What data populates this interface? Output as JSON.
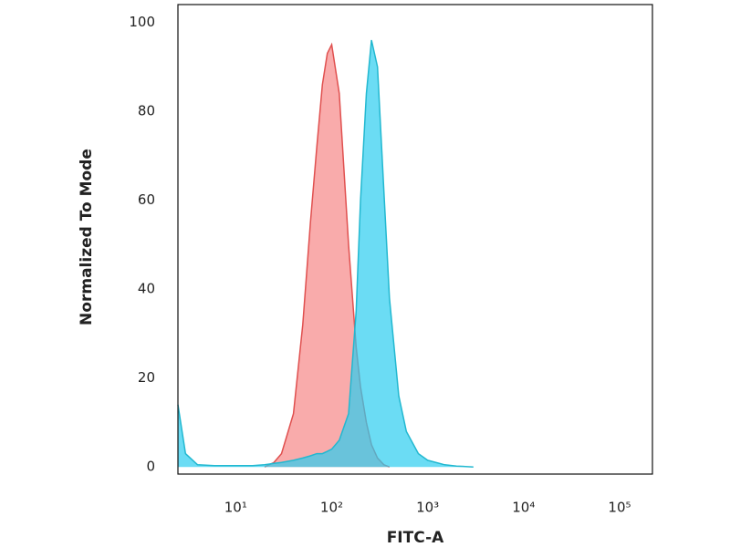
{
  "chart_data": {
    "type": "histogram-overlay",
    "x_label": "FITC-A",
    "y_label": "Normalized To Mode",
    "x_scale": "log",
    "x": [
      2.5,
      3,
      4,
      6,
      10,
      15,
      20,
      25,
      30,
      40,
      50,
      60,
      70,
      80,
      90,
      100,
      120,
      150,
      180,
      200,
      230,
      260,
      300,
      350,
      400,
      500,
      600,
      800,
      1000,
      1500,
      2000,
      3000
    ],
    "series": [
      {
        "color": "#e0504f",
        "fill": "#f78f8f",
        "values": [
          null,
          null,
          null,
          null,
          null,
          null,
          0,
          1,
          3,
          12,
          32,
          55,
          72,
          86,
          93,
          95,
          84,
          50,
          27,
          18,
          10,
          5,
          2,
          0.5,
          0,
          null,
          null,
          null,
          null,
          null,
          null,
          null
        ]
      },
      {
        "color": "#22b8d0",
        "fill": "#2ccdf0",
        "values": [
          14,
          3,
          0.5,
          0.3,
          0.3,
          0.3,
          0.5,
          0.8,
          1,
          1.5,
          2,
          2.5,
          3,
          3,
          3.5,
          4,
          6,
          12,
          35,
          60,
          84,
          96,
          90,
          62,
          38,
          16,
          8,
          3,
          1.5,
          0.5,
          0.2,
          0
        ]
      }
    ],
    "xlim": [
      2.5,
      220000
    ],
    "ylim": [
      -1.6,
      104
    ],
    "xticks": [
      {
        "value": 10,
        "label": "10¹"
      },
      {
        "value": 100,
        "label": "10²"
      },
      {
        "value": 1000,
        "label": "10³"
      },
      {
        "value": 10000,
        "label": "10⁴"
      },
      {
        "value": 100000,
        "label": "10⁵"
      }
    ],
    "yticks": [
      0,
      20,
      40,
      60,
      80,
      100
    ]
  }
}
